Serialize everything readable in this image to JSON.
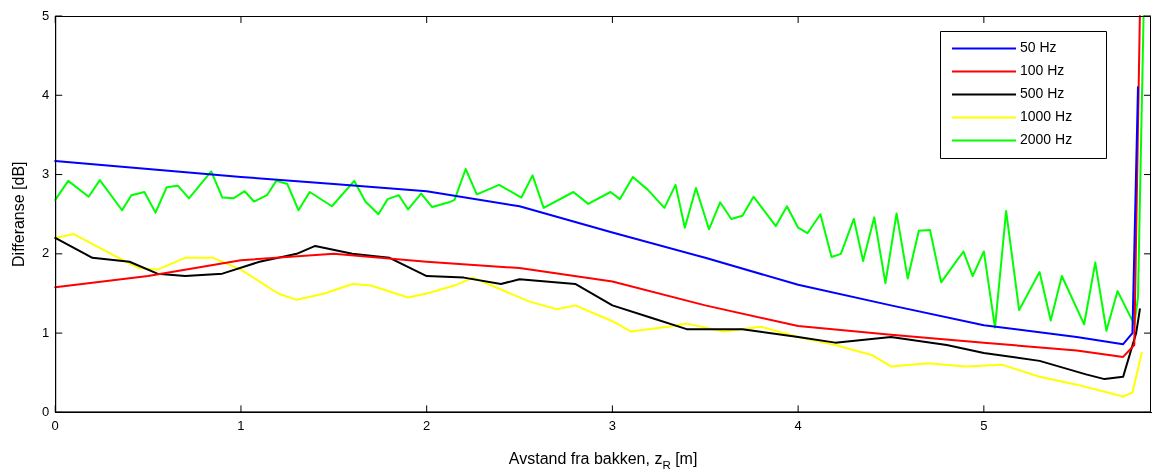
{
  "chart_data": {
    "type": "line",
    "xlabel": "Avstand fra bakken, z$_{R}$ [m]",
    "ylabel": "Differanse [dB]",
    "xlim": [
      0,
      5.9
    ],
    "xticks": [
      0,
      1,
      2,
      3,
      4,
      5
    ],
    "ylim": [
      0,
      5
    ],
    "yticks": [
      0,
      1,
      2,
      3,
      4,
      5
    ],
    "grid": false,
    "legend": "top right",
    "marker": "none",
    "line_style": "solid",
    "series": [
      {
        "name": "50 Hz",
        "color": "#0000ff",
        "x": [
          0,
          0.5,
          1,
          1.5,
          2,
          2.5,
          3,
          3.5,
          4,
          4.5,
          5,
          5.5,
          5.75,
          5.8,
          5.83
        ],
        "values": [
          3.17,
          3.07,
          2.97,
          2.88,
          2.79,
          2.6,
          2.27,
          1.95,
          1.61,
          1.35,
          1.1,
          0.95,
          0.86,
          1.0,
          4.1
        ]
      },
      {
        "name": "100 Hz",
        "color": "#ff0000",
        "x": [
          0,
          0.5,
          1,
          1.5,
          2,
          2.5,
          3,
          3.5,
          4,
          4.5,
          5,
          5.5,
          5.75,
          5.81,
          5.84
        ],
        "values": [
          1.58,
          1.72,
          1.92,
          2.0,
          1.9,
          1.82,
          1.65,
          1.35,
          1.09,
          0.98,
          0.88,
          0.78,
          0.7,
          0.85,
          5
        ]
      },
      {
        "name": "500 Hz",
        "color": "#000000",
        "x": [
          0,
          0.2,
          0.4,
          0.55,
          0.7,
          0.9,
          1.1,
          1.3,
          1.4,
          1.6,
          1.8,
          2.0,
          2.2,
          2.4,
          2.5,
          2.8,
          3.0,
          3.2,
          3.4,
          3.7,
          4.0,
          4.2,
          4.5,
          4.8,
          5.0,
          5.3,
          5.55,
          5.65,
          5.75,
          5.82,
          5.84
        ],
        "values": [
          2.2,
          1.95,
          1.9,
          1.75,
          1.72,
          1.75,
          1.9,
          2.0,
          2.1,
          2.0,
          1.95,
          1.72,
          1.7,
          1.62,
          1.68,
          1.62,
          1.35,
          1.2,
          1.05,
          1.05,
          0.95,
          0.88,
          0.95,
          0.85,
          0.75,
          0.65,
          0.48,
          0.42,
          0.45,
          1.0,
          1.3
        ]
      },
      {
        "name": "1000 Hz",
        "color": "#ffff00",
        "x": [
          0,
          0.1,
          0.3,
          0.45,
          0.55,
          0.7,
          0.85,
          1.0,
          1.2,
          1.3,
          1.45,
          1.6,
          1.7,
          1.9,
          2.0,
          2.15,
          2.25,
          2.4,
          2.55,
          2.7,
          2.8,
          3.0,
          3.1,
          3.3,
          3.4,
          3.6,
          3.8,
          4.0,
          4.2,
          4.4,
          4.5,
          4.7,
          4.9,
          5.1,
          5.3,
          5.5,
          5.75,
          5.8,
          5.85
        ],
        "values": [
          2.2,
          2.25,
          2.0,
          1.82,
          1.8,
          1.95,
          1.95,
          1.8,
          1.5,
          1.42,
          1.5,
          1.62,
          1.6,
          1.45,
          1.5,
          1.6,
          1.7,
          1.55,
          1.4,
          1.3,
          1.35,
          1.15,
          1.02,
          1.08,
          1.12,
          1.02,
          1.08,
          0.95,
          0.85,
          0.72,
          0.58,
          0.62,
          0.58,
          0.6,
          0.45,
          0.35,
          0.2,
          0.25,
          0.75
        ]
      },
      {
        "name": "2000 Hz",
        "color": "#00ff00",
        "x": [
          0,
          0.07,
          0.18,
          0.24,
          0.36,
          0.41,
          0.48,
          0.54,
          0.6,
          0.66,
          0.72,
          0.84,
          0.9,
          0.96,
          1.02,
          1.07,
          1.14,
          1.19,
          1.25,
          1.31,
          1.37,
          1.49,
          1.61,
          1.67,
          1.74,
          1.79,
          1.85,
          1.9,
          1.97,
          2.03,
          2.12,
          2.15,
          2.21,
          2.27,
          2.39,
          2.51,
          2.57,
          2.63,
          2.79,
          2.87,
          2.99,
          3.04,
          3.11,
          3.19,
          3.28,
          3.34,
          3.39,
          3.45,
          3.52,
          3.58,
          3.64,
          3.7,
          3.76,
          3.88,
          3.94,
          4.0,
          4.05,
          4.12,
          4.18,
          4.23,
          4.3,
          4.35,
          4.41,
          4.47,
          4.53,
          4.59,
          4.65,
          4.71,
          4.77,
          4.89,
          4.94,
          5.0,
          5.06,
          5.12,
          5.19,
          5.3,
          5.36,
          5.42,
          5.54,
          5.6,
          5.66,
          5.72,
          5.81,
          5.83,
          5.86
        ],
        "values": [
          2.68,
          2.92,
          2.72,
          2.93,
          2.55,
          2.74,
          2.78,
          2.52,
          2.84,
          2.86,
          2.7,
          3.04,
          2.71,
          2.7,
          2.79,
          2.66,
          2.74,
          2.92,
          2.88,
          2.55,
          2.78,
          2.6,
          2.92,
          2.66,
          2.5,
          2.69,
          2.74,
          2.56,
          2.76,
          2.59,
          2.65,
          2.68,
          3.07,
          2.75,
          2.87,
          2.71,
          2.99,
          2.58,
          2.78,
          2.63,
          2.78,
          2.69,
          2.97,
          2.81,
          2.58,
          2.87,
          2.33,
          2.83,
          2.31,
          2.65,
          2.44,
          2.48,
          2.72,
          2.35,
          2.6,
          2.33,
          2.26,
          2.5,
          1.96,
          2.0,
          2.44,
          1.91,
          2.46,
          1.63,
          2.51,
          1.69,
          2.29,
          2.3,
          1.64,
          2.03,
          1.72,
          2.03,
          1.07,
          2.54,
          1.29,
          1.77,
          1.16,
          1.72,
          1.11,
          1.89,
          1.03,
          1.53,
          1.11,
          1.45,
          5
        ]
      }
    ]
  }
}
